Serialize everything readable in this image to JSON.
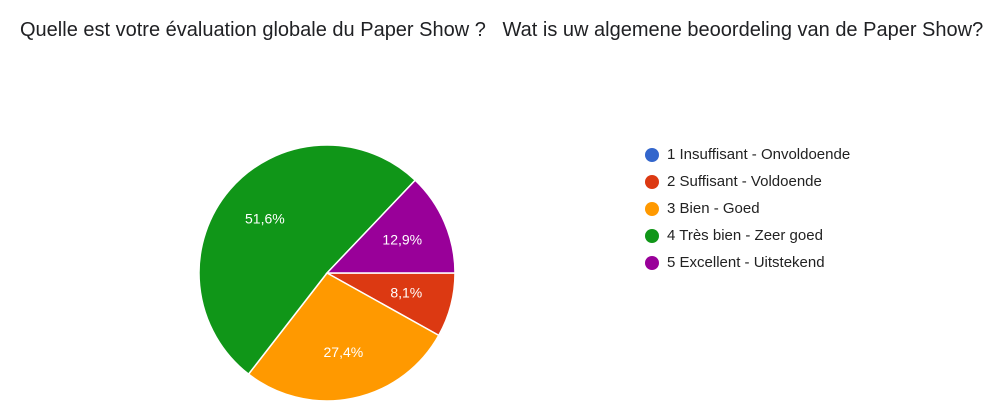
{
  "chart_data": {
    "type": "pie",
    "title": "Quelle est votre évaluation globale du Paper Show ?   Wat is uw algemene beoordeling van de Paper Show?",
    "categories": [
      "1 Insuffisant - Onvoldoende",
      "2 Suffisant - Voldoende",
      "3 Bien - Goed",
      "4 Très bien - Zeer goed",
      "5 Excellent - Uitstekend"
    ],
    "values": [
      0,
      8.1,
      27.4,
      51.6,
      12.9
    ],
    "value_labels": [
      null,
      "8,1%",
      "27,4%",
      "51,6%",
      "12,9%"
    ],
    "colors": [
      "#3366cc",
      "#dc3912",
      "#ff9900",
      "#109618",
      "#990099"
    ],
    "legend": "right"
  }
}
